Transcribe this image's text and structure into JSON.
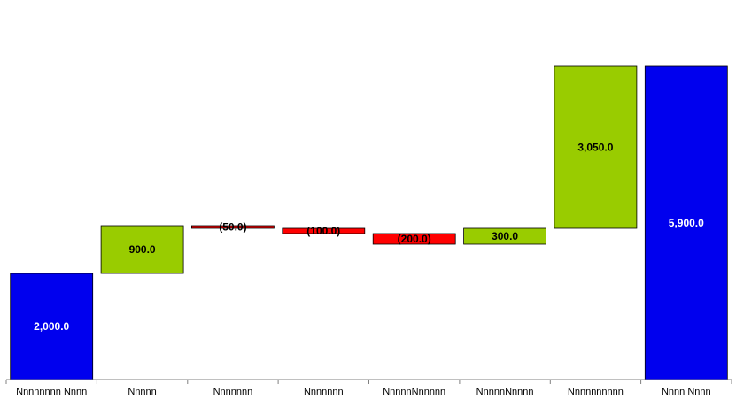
{
  "chart_data": {
    "type": "bar",
    "subtype": "waterfall",
    "categories": [
      "Nnnnnnnn Nnnn",
      "Nnnnn",
      "Nnnnnnn",
      "Nnnnnnn",
      "NnnnnNnnnnn",
      "NnnnnNnnnn",
      "Nnnnnnnnnn",
      "Nnnn Nnnn"
    ],
    "values": [
      2000.0,
      900.0,
      -50.0,
      -100.0,
      -200.0,
      300.0,
      3050.0,
      5900.0
    ],
    "labels": [
      "2,000.0",
      "900.0",
      "(50.0)",
      "(100.0)",
      "(200.0)",
      "300.0",
      "3,050.0",
      "5,900.0"
    ],
    "kinds": [
      "total",
      "increase",
      "decrease",
      "decrease",
      "decrease",
      "increase",
      "increase",
      "total"
    ],
    "ylim": [
      0,
      5900
    ],
    "grid": false,
    "colors": {
      "total": "#0000ee",
      "increase": "#99cc00",
      "decrease": "#ff0000",
      "total_label": "#ffffff",
      "other_label": "#000000"
    }
  }
}
